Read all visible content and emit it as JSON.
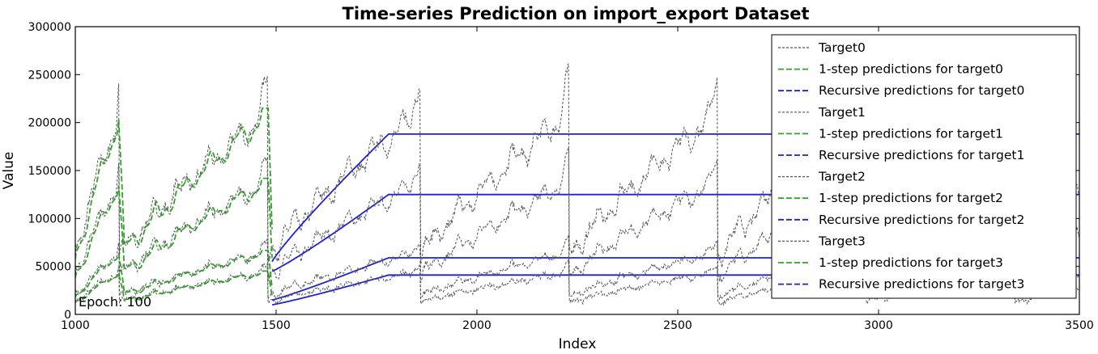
{
  "chart_data": {
    "type": "line",
    "title": "Time-series Prediction on import_export Dataset",
    "xlabel": "Index",
    "ylabel": "Value",
    "xlim": [
      1000,
      3500
    ],
    "ylim": [
      0,
      300000
    ],
    "x_ticks": [
      "1000",
      "1500",
      "2000",
      "2500",
      "3000",
      "3500"
    ],
    "y_ticks": [
      "0",
      "50000",
      "100000",
      "150000",
      "200000",
      "250000",
      "300000"
    ],
    "annotation": "Epoch: 100",
    "legend_placement": "upper right",
    "grid": false,
    "colors": {
      "target": "#555555",
      "one_step": "#33a02c",
      "recursive": "#1f1fd6"
    },
    "series": [
      {
        "name": "Target0",
        "role": "target",
        "color": "#555555",
        "level": 1.0
      },
      {
        "name": "1-step predictions for target0",
        "role": "one_step",
        "color": "#33a02c",
        "level": 1.0
      },
      {
        "name": "Recursive predictions for target0",
        "role": "recursive",
        "color": "#1f1fd6",
        "level": 1.0,
        "plateau": 188000
      },
      {
        "name": "Target1",
        "role": "target",
        "color": "#555555",
        "level": 0.66
      },
      {
        "name": "1-step predictions for target1",
        "role": "one_step",
        "color": "#33a02c",
        "level": 0.66
      },
      {
        "name": "Recursive predictions for target1",
        "role": "recursive",
        "color": "#1f1fd6",
        "level": 0.66,
        "plateau": 125000
      },
      {
        "name": "Target2",
        "role": "target",
        "color": "#555555",
        "level": 0.31
      },
      {
        "name": "1-step predictions for target2",
        "role": "one_step",
        "color": "#33a02c",
        "level": 0.31
      },
      {
        "name": "Recursive predictions for target2",
        "role": "recursive",
        "color": "#1f1fd6",
        "level": 0.31,
        "plateau": 59000
      },
      {
        "name": "Target3",
        "role": "target",
        "color": "#555555",
        "level": 0.21
      },
      {
        "name": "1-step predictions for target3",
        "role": "one_step",
        "color": "#33a02c",
        "level": 0.21
      },
      {
        "name": "Recursive predictions for target3",
        "role": "recursive",
        "color": "#1f1fd6",
        "level": 0.21,
        "plateau": 41000
      }
    ]
  }
}
